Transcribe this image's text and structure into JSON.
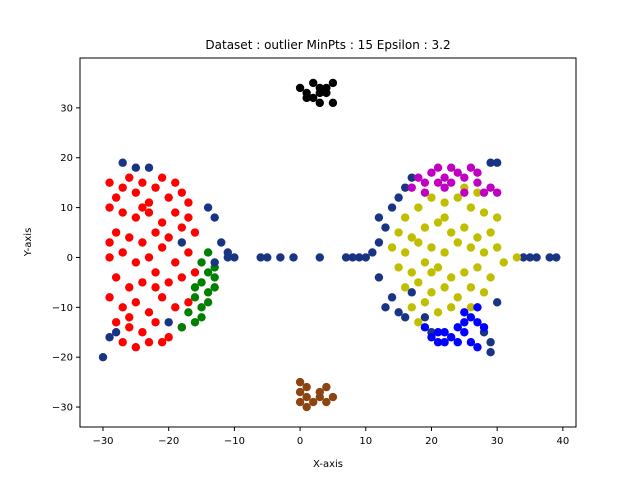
{
  "chart_data": {
    "type": "scatter",
    "title": "Dataset : outlier MinPts : 15 Epsilon : 3.2",
    "xlabel": "X-axis",
    "ylabel": "Y-axis",
    "xlim": [
      -33.5,
      42
    ],
    "ylim": [
      -34,
      40
    ],
    "xticks": [
      -30,
      -20,
      -10,
      0,
      10,
      20,
      30,
      40
    ],
    "yticks": [
      -30,
      -20,
      -10,
      0,
      10,
      20,
      30
    ],
    "grid": false,
    "legend": "none",
    "series": [
      {
        "color": "#ff0000",
        "points": [
          [
            -29,
            15
          ],
          [
            -28,
            12
          ],
          [
            -27,
            14
          ],
          [
            -26,
            16
          ],
          [
            -25,
            13
          ],
          [
            -24,
            15
          ],
          [
            -23,
            11
          ],
          [
            -22,
            14
          ],
          [
            -21,
            16
          ],
          [
            -20,
            12
          ],
          [
            -19,
            15
          ],
          [
            -18,
            13
          ],
          [
            -17,
            11
          ],
          [
            -29,
            10
          ],
          [
            -27,
            9
          ],
          [
            -25,
            8
          ],
          [
            -23,
            9
          ],
          [
            -21,
            7
          ],
          [
            -19,
            9
          ],
          [
            -17,
            8
          ],
          [
            -28,
            5
          ],
          [
            -26,
            4
          ],
          [
            -24,
            3
          ],
          [
            -22,
            5
          ],
          [
            -20,
            4
          ],
          [
            -18,
            6
          ],
          [
            -16,
            5
          ],
          [
            -29,
            0
          ],
          [
            -27,
            1
          ],
          [
            -25,
            -1
          ],
          [
            -23,
            0
          ],
          [
            -21,
            2
          ],
          [
            -19,
            -1
          ],
          [
            -17,
            1
          ],
          [
            -28,
            -4
          ],
          [
            -26,
            -6
          ],
          [
            -24,
            -5
          ],
          [
            -22,
            -3
          ],
          [
            -20,
            -5
          ],
          [
            -18,
            -4
          ],
          [
            -16,
            -3
          ],
          [
            -29,
            -8
          ],
          [
            -27,
            -10
          ],
          [
            -25,
            -9
          ],
          [
            -23,
            -11
          ],
          [
            -21,
            -8
          ],
          [
            -19,
            -10
          ],
          [
            -17,
            -9
          ],
          [
            -28,
            -13
          ],
          [
            -26,
            -14
          ],
          [
            -24,
            -15
          ],
          [
            -22,
            -13
          ],
          [
            -20,
            -16
          ],
          [
            -18,
            -14
          ],
          [
            -27,
            -17
          ],
          [
            -25,
            -18
          ],
          [
            -23,
            -17
          ],
          [
            -21,
            -17
          ],
          [
            -29,
            3
          ],
          [
            -24,
            10
          ],
          [
            -22,
            -6
          ],
          [
            -26,
            -12
          ]
        ]
      },
      {
        "color": "#008000",
        "points": [
          [
            -15,
            -1
          ],
          [
            -14,
            -3
          ],
          [
            -13,
            -2
          ],
          [
            -15,
            -5
          ],
          [
            -14,
            -7
          ],
          [
            -16,
            -8
          ],
          [
            -15,
            -10
          ],
          [
            -14,
            -9
          ],
          [
            -13,
            -6
          ],
          [
            -17,
            -11
          ],
          [
            -16,
            -13
          ],
          [
            -18,
            -14
          ],
          [
            -14,
            1
          ],
          [
            -13,
            -4
          ],
          [
            -16,
            -6
          ],
          [
            -15,
            -12
          ]
        ]
      },
      {
        "color": "#1a3484",
        "points": [
          [
            -27,
            19
          ],
          [
            -25,
            18
          ],
          [
            -23,
            18
          ],
          [
            -14,
            10
          ],
          [
            -13,
            8
          ],
          [
            -12,
            3
          ],
          [
            -11,
            1
          ],
          [
            -13,
            -1
          ],
          [
            -11,
            0
          ],
          [
            -10,
            0
          ],
          [
            -18,
            3
          ],
          [
            -6,
            0
          ],
          [
            -5,
            0
          ],
          [
            -3,
            0
          ],
          [
            -1,
            0
          ],
          [
            3,
            0
          ],
          [
            7,
            0
          ],
          [
            8,
            0
          ],
          [
            9,
            0
          ],
          [
            10,
            0
          ],
          [
            11,
            1
          ],
          [
            12,
            3
          ],
          [
            13,
            6
          ],
          [
            12,
            8
          ],
          [
            14,
            10
          ],
          [
            15,
            12
          ],
          [
            16,
            14
          ],
          [
            17,
            16
          ],
          [
            12,
            -4
          ],
          [
            13,
            -10
          ],
          [
            14,
            -8
          ],
          [
            15,
            -11
          ],
          [
            16,
            -12
          ],
          [
            17,
            -7
          ],
          [
            19,
            -12
          ],
          [
            20,
            -15
          ],
          [
            28,
            -15
          ],
          [
            29,
            -17
          ],
          [
            29,
            -19
          ],
          [
            29,
            19
          ],
          [
            30,
            19
          ],
          [
            34,
            0
          ],
          [
            35,
            0
          ],
          [
            36,
            0
          ],
          [
            38,
            0
          ],
          [
            39,
            0
          ],
          [
            -30,
            -20
          ],
          [
            -29,
            -16
          ],
          [
            -28,
            -15
          ],
          [
            -20,
            -13
          ],
          [
            30,
            -9
          ]
        ]
      },
      {
        "color": "#bfbf00",
        "points": [
          [
            16,
            8
          ],
          [
            18,
            10
          ],
          [
            20,
            12
          ],
          [
            22,
            11
          ],
          [
            24,
            12
          ],
          [
            26,
            10
          ],
          [
            28,
            9
          ],
          [
            30,
            8
          ],
          [
            15,
            5
          ],
          [
            17,
            4
          ],
          [
            19,
            6
          ],
          [
            21,
            7
          ],
          [
            23,
            5
          ],
          [
            25,
            6
          ],
          [
            27,
            4
          ],
          [
            29,
            5
          ],
          [
            14,
            2
          ],
          [
            16,
            1
          ],
          [
            18,
            3
          ],
          [
            20,
            2
          ],
          [
            22,
            1
          ],
          [
            24,
            3
          ],
          [
            26,
            2
          ],
          [
            28,
            1
          ],
          [
            30,
            2
          ],
          [
            15,
            -2
          ],
          [
            17,
            -3
          ],
          [
            19,
            -1
          ],
          [
            21,
            -2
          ],
          [
            23,
            -4
          ],
          [
            25,
            -3
          ],
          [
            27,
            -2
          ],
          [
            29,
            -4
          ],
          [
            16,
            -6
          ],
          [
            18,
            -5
          ],
          [
            20,
            -7
          ],
          [
            22,
            -6
          ],
          [
            24,
            -8
          ],
          [
            26,
            -6
          ],
          [
            28,
            -7
          ],
          [
            17,
            -10
          ],
          [
            19,
            -9
          ],
          [
            21,
            -11
          ],
          [
            23,
            -10
          ],
          [
            18,
            -13
          ],
          [
            25,
            14
          ],
          [
            27,
            13
          ],
          [
            33,
            0
          ],
          [
            31,
            -1
          ],
          [
            20,
            -3
          ],
          [
            22,
            8
          ],
          [
            26,
            -10
          ]
        ]
      },
      {
        "color": "#c000c0",
        "points": [
          [
            17,
            14
          ],
          [
            18,
            16
          ],
          [
            19,
            15
          ],
          [
            20,
            17
          ],
          [
            21,
            18
          ],
          [
            22,
            16
          ],
          [
            23,
            18
          ],
          [
            24,
            17
          ],
          [
            25,
            16
          ],
          [
            26,
            18
          ],
          [
            27,
            15
          ],
          [
            28,
            13
          ],
          [
            29,
            14
          ],
          [
            30,
            13
          ],
          [
            21,
            15
          ],
          [
            23,
            15
          ],
          [
            25,
            13
          ],
          [
            27,
            17
          ],
          [
            19,
            13
          ],
          [
            22,
            14
          ]
        ]
      },
      {
        "color": "#0000ff",
        "points": [
          [
            19,
            -14
          ],
          [
            20,
            -16
          ],
          [
            21,
            -15
          ],
          [
            22,
            -17
          ],
          [
            23,
            -16
          ],
          [
            24,
            -14
          ],
          [
            25,
            -15
          ],
          [
            26,
            -17
          ],
          [
            27,
            -13
          ],
          [
            28,
            -14
          ],
          [
            25,
            -11
          ],
          [
            26,
            -12
          ],
          [
            27,
            -10
          ],
          [
            24,
            -17
          ],
          [
            22,
            -15
          ],
          [
            21,
            -17
          ],
          [
            27,
            -18
          ],
          [
            25,
            -13
          ]
        ]
      },
      {
        "color": "#000000",
        "points": [
          [
            0,
            34
          ],
          [
            1,
            33
          ],
          [
            2,
            35
          ],
          [
            3,
            34
          ],
          [
            4,
            33
          ],
          [
            5,
            35
          ],
          [
            2,
            32
          ],
          [
            3,
            31
          ],
          [
            1,
            32
          ],
          [
            4,
            34
          ],
          [
            5,
            31
          ],
          [
            3,
            33
          ]
        ]
      },
      {
        "color": "#8b4513",
        "points": [
          [
            0,
            -25
          ],
          [
            1,
            -26
          ],
          [
            0,
            -27
          ],
          [
            1,
            -28
          ],
          [
            2,
            -29
          ],
          [
            3,
            -27
          ],
          [
            4,
            -26
          ],
          [
            5,
            -28
          ],
          [
            4,
            -29
          ],
          [
            1,
            -30
          ],
          [
            0,
            -29
          ],
          [
            3,
            -28
          ]
        ]
      }
    ]
  }
}
